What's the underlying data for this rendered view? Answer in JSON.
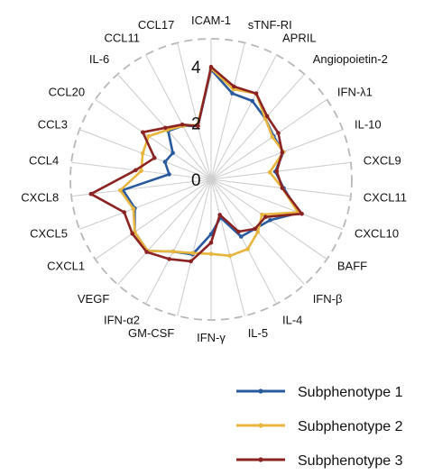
{
  "chart_data": {
    "type": "radar",
    "axes": [
      "ICAM-1",
      "sTNF-RI",
      "APRIL",
      "Angiopoietin-2",
      "IFN-λ1",
      "IL-10",
      "CXCL9",
      "CXCL11",
      "CXCL10",
      "BAFF",
      "IFN-β",
      "IL-4",
      "IL-5",
      "IFN-γ",
      "GM-CSF",
      "IFN-α2",
      "VEGF",
      "CXCL1",
      "CXCL5",
      "CXCL8",
      "CCL4",
      "CCL3",
      "CCL20",
      "IL-6",
      "CCL11",
      "CCL17"
    ],
    "r_ticks": [
      {
        "value": 0,
        "label": "0"
      },
      {
        "value": 2,
        "label": "2"
      },
      {
        "value": 4,
        "label": "4"
      }
    ],
    "rlim": [
      0,
      5
    ],
    "grid": true,
    "legend_position": "bottom-right",
    "series": [
      {
        "name": "Subphenotype 1",
        "color": "#2a5a9e",
        "values": [
          3.9,
          3.15,
          3.15,
          2.9,
          2.7,
          2.75,
          2.3,
          2.6,
          3.35,
          2.55,
          2.35,
          2.3,
          1.4,
          1.95,
          2.75,
          2.9,
          3.4,
          3.3,
          2.9,
          3.15,
          1.5,
          1.75,
          1.65,
          2.3,
          2.15,
          1.95
        ]
      },
      {
        "name": "Subphenotype 2",
        "color": "#e8b53e",
        "values": [
          3.95,
          3.3,
          3.45,
          2.9,
          2.65,
          2.75,
          2.1,
          2.55,
          3.3,
          2.2,
          2.5,
          2.8,
          2.8,
          2.65,
          2.7,
          2.9,
          3.4,
          3.3,
          2.95,
          3.25,
          2.5,
          2.6,
          2.7,
          2.35,
          2.15,
          2.0
        ]
      },
      {
        "name": "Subphenotype 3",
        "color": "#8c2323",
        "values": [
          4.0,
          3.4,
          3.45,
          3.0,
          2.9,
          2.7,
          2.35,
          2.55,
          3.45,
          2.35,
          2.35,
          2.1,
          1.3,
          2.25,
          3.0,
          3.2,
          3.45,
          3.4,
          3.3,
          4.3,
          2.7,
          2.15,
          2.95,
          2.45,
          2.2,
          1.95
        ]
      }
    ]
  }
}
